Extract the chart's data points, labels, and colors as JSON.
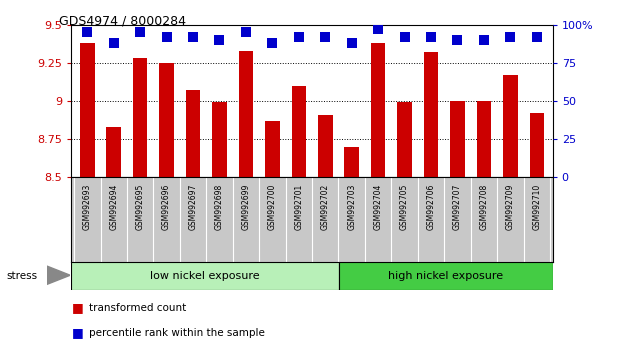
{
  "title": "GDS4974 / 8000284",
  "samples": [
    "GSM992693",
    "GSM992694",
    "GSM992695",
    "GSM992696",
    "GSM992697",
    "GSM992698",
    "GSM992699",
    "GSM992700",
    "GSM992701",
    "GSM992702",
    "GSM992703",
    "GSM992704",
    "GSM992705",
    "GSM992706",
    "GSM992707",
    "GSM992708",
    "GSM992709",
    "GSM992710"
  ],
  "bar_values": [
    9.38,
    8.83,
    9.28,
    9.25,
    9.07,
    8.99,
    9.33,
    8.87,
    9.1,
    8.91,
    8.7,
    9.38,
    8.99,
    9.32,
    9.0,
    9.0,
    9.17,
    8.92
  ],
  "percentile_values": [
    95,
    88,
    95,
    92,
    92,
    90,
    95,
    88,
    92,
    92,
    88,
    97,
    92,
    92,
    90,
    90,
    92,
    92
  ],
  "bar_color": "#cc0000",
  "dot_color": "#0000cc",
  "ylim_left": [
    8.5,
    9.5
  ],
  "ylim_right": [
    0,
    100
  ],
  "yticks_left": [
    8.5,
    8.75,
    9.0,
    9.25,
    9.5
  ],
  "yticks_right": [
    0,
    25,
    50,
    75,
    100
  ],
  "ytick_labels_left": [
    "8.5",
    "8.75",
    "9",
    "9.25",
    "9.5"
  ],
  "ytick_labels_right": [
    "0",
    "25",
    "50",
    "75",
    "100%"
  ],
  "group1_label": "low nickel exposure",
  "group2_label": "high nickel exposure",
  "group1_count": 10,
  "stress_label": "stress",
  "legend_bar": "transformed count",
  "legend_dot": "percentile rank within the sample",
  "background_color": "#ffffff",
  "plot_bg_color": "#ffffff",
  "label_bg_color": "#c8c8c8",
  "group1_color": "#b8f0b8",
  "group2_color": "#44cc44",
  "bar_width": 0.55,
  "dot_size": 55
}
